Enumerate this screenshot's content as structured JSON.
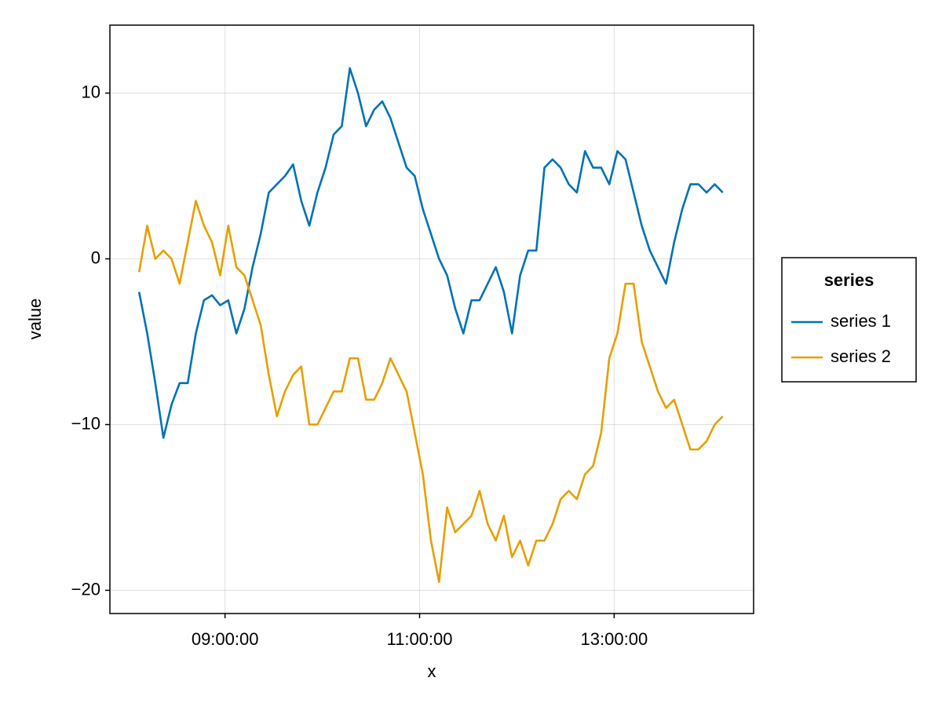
{
  "chart_data": {
    "type": "line",
    "xlabel": "x",
    "ylabel": "value",
    "x": [
      "08:07:00",
      "08:12:00",
      "08:17:00",
      "08:22:00",
      "08:27:00",
      "08:32:00",
      "08:37:00",
      "08:42:00",
      "08:47:00",
      "08:52:00",
      "08:57:00",
      "09:02:00",
      "09:07:00",
      "09:12:00",
      "09:17:00",
      "09:22:00",
      "09:27:00",
      "09:32:00",
      "09:37:00",
      "09:42:00",
      "09:47:00",
      "09:52:00",
      "09:57:00",
      "10:02:00",
      "10:07:00",
      "10:12:00",
      "10:17:00",
      "10:22:00",
      "10:27:00",
      "10:32:00",
      "10:37:00",
      "10:42:00",
      "10:47:00",
      "10:52:00",
      "10:57:00",
      "11:02:00",
      "11:07:00",
      "11:12:00",
      "11:17:00",
      "11:22:00",
      "11:27:00",
      "11:32:00",
      "11:37:00",
      "11:42:00",
      "11:47:00",
      "11:52:00",
      "11:57:00",
      "12:02:00",
      "12:07:00",
      "12:12:00",
      "12:17:00",
      "12:22:00",
      "12:27:00",
      "12:32:00",
      "12:37:00",
      "12:42:00",
      "12:47:00",
      "12:52:00",
      "12:57:00",
      "13:02:00",
      "13:07:00",
      "13:12:00",
      "13:17:00",
      "13:22:00",
      "13:27:00",
      "13:32:00",
      "13:37:00",
      "13:42:00",
      "13:47:00",
      "13:52:00",
      "13:57:00",
      "14:02:00",
      "14:07:00"
    ],
    "series": [
      {
        "name": "series 1",
        "color": "#0072b2",
        "values": [
          -2.0,
          -4.5,
          -7.5,
          -10.8,
          -8.8,
          -7.5,
          -7.5,
          -4.5,
          -2.5,
          -2.2,
          -2.8,
          -2.5,
          -4.5,
          -3.0,
          -0.5,
          1.5,
          4.0,
          4.5,
          5.0,
          5.7,
          3.5,
          2.0,
          4.0,
          5.5,
          7.5,
          8.0,
          11.5,
          10.0,
          8.0,
          9.0,
          9.5,
          8.5,
          7.0,
          5.5,
          5.0,
          3.0,
          1.5,
          0.0,
          -1.0,
          -3.0,
          -4.5,
          -2.5,
          -2.5,
          -1.5,
          -0.5,
          -2.0,
          -4.5,
          -1.0,
          0.5,
          0.5,
          5.5,
          6.0,
          5.5,
          4.5,
          4.0,
          6.5,
          5.5,
          5.5,
          4.5,
          6.5,
          6.0,
          4.0,
          2.0,
          0.5,
          -0.5,
          -1.5,
          1.0,
          3.0,
          4.5,
          4.5,
          4.0,
          4.5,
          4.0
        ]
      },
      {
        "name": "series 2",
        "color": "#e69f00",
        "values": [
          -0.8,
          2.0,
          0.0,
          0.5,
          0.0,
          -1.5,
          1.0,
          3.5,
          2.0,
          1.0,
          -1.0,
          2.0,
          -0.5,
          -1.0,
          -2.5,
          -4.0,
          -7.0,
          -9.5,
          -8.0,
          -7.0,
          -6.5,
          -10.0,
          -10.0,
          -9.0,
          -8.0,
          -8.0,
          -6.0,
          -6.0,
          -8.5,
          -8.5,
          -7.5,
          -6.0,
          -7.0,
          -8.0,
          -10.5,
          -13.0,
          -17.0,
          -19.5,
          -15.0,
          -16.5,
          -16.0,
          -15.5,
          -14.0,
          -16.0,
          -17.0,
          -15.5,
          -18.0,
          -17.0,
          -18.5,
          -17.0,
          -17.0,
          -16.0,
          -14.5,
          -14.0,
          -14.5,
          -13.0,
          -12.5,
          -10.5,
          -6.0,
          -4.5,
          -1.5,
          -1.5,
          -5.0,
          -6.5,
          -8.0,
          -9.0,
          -8.5,
          -10.0,
          -11.5,
          -11.5,
          -11.0,
          -10.0,
          -9.5
        ]
      }
    ],
    "xlim": [
      "07:49:00",
      "14:26:00"
    ],
    "xticks": [
      "09:00:00",
      "11:00:00",
      "13:00:00"
    ],
    "ylim": [
      -21.4,
      14.1
    ],
    "yticks": [
      {
        "value": -20,
        "label": "−20"
      },
      {
        "value": -10,
        "label": "−10"
      },
      0,
      10
    ],
    "grid": true,
    "legend": {
      "title": "series",
      "position": "right"
    }
  }
}
